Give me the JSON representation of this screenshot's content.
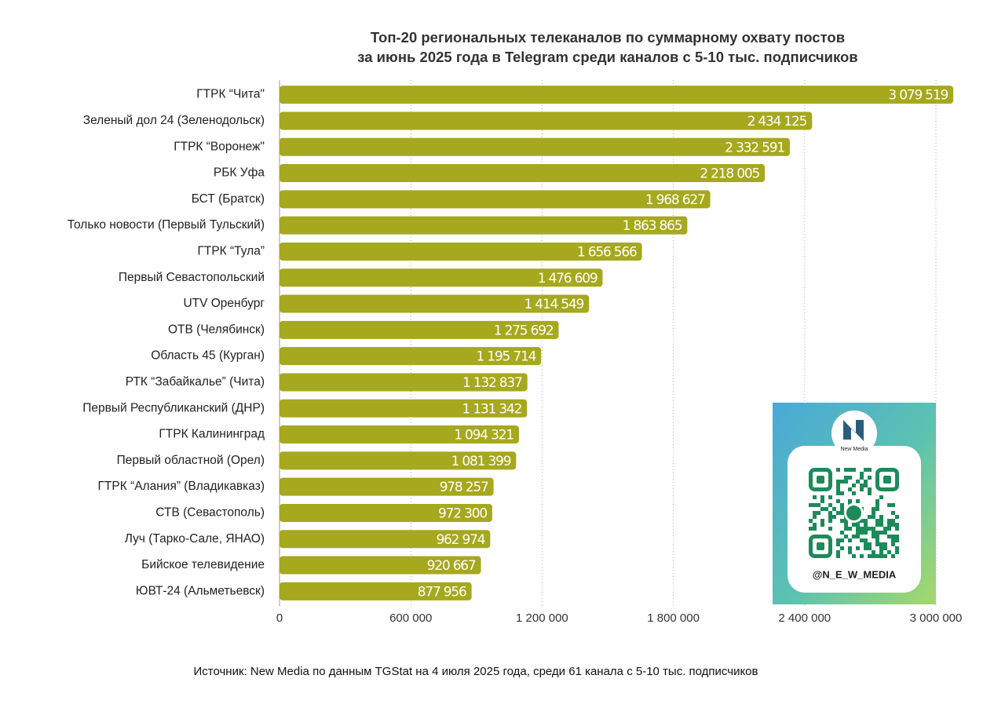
{
  "chart_data": {
    "type": "bar",
    "orientation": "horizontal",
    "title": [
      "Топ-20 региональных телеканалов по суммарному охвату постов",
      "за июнь 2025 года в Telegram среди каналов с 5-10 тыс. подписчиков"
    ],
    "categories": [
      "ГТРК “Чита\"",
      "Зеленый дол 24 (Зеленодольск)",
      "ГТРК “Воронеж\"",
      "РБК Уфа",
      "БСТ (Братск)",
      "Только новости (Первый Тульский)",
      "ГТРК “Тула”",
      "Первый Севастопольский",
      "UTV Оренбург",
      "ОТВ (Челябинск)",
      "Область 45 (Курган)",
      "РТК “Забайкалье” (Чита)",
      "Первый Республиканский (ДНР)",
      "ГТРК Калининград",
      "Первый областной (Орел)",
      "ГТРК “Алания” (Владикавказ)",
      "СТВ (Севастополь)",
      "Луч (Тарко-Сале, ЯНАО)",
      "Бийское телевидение",
      "ЮВТ-24 (Альметьевск)"
    ],
    "values": [
      3079519,
      2434125,
      2332591,
      2218005,
      1968627,
      1863865,
      1656566,
      1476609,
      1414549,
      1275692,
      1195714,
      1132837,
      1131342,
      1094321,
      1081399,
      978257,
      972300,
      962974,
      920667,
      877956
    ],
    "value_labels": [
      "3 079 519",
      "2 434 125",
      "2 332 591",
      "2 218 005",
      "1 968 627",
      "1 863 865",
      "1 656 566",
      "1 476 609",
      "1 414 549",
      "1 275 692",
      "1 195 714",
      "1 132 837",
      "1 131 342",
      "1 094 321",
      "1 081 399",
      "978 257",
      "972 300",
      "962 974",
      "920 667",
      "877 956"
    ],
    "color": "#a6a81e",
    "xlim": [
      0,
      3000000
    ],
    "xticks": [
      0,
      {
        "value": 600000,
        "label": "600 000"
      },
      {
        "value": 1200000,
        "label": "1 200 000"
      },
      {
        "value": 1800000,
        "label": "1 800 000"
      },
      {
        "value": 2400000,
        "label": "2 400 000"
      },
      {
        "value": 3000000,
        "label": "3 000 000"
      }
    ],
    "grid": true,
    "source": "Источник: New Media по данным TGStat на 4 июля 2025 года, среди 61 канала с 5-10 тыс. подписчиков"
  },
  "badge": {
    "logo_text": "New Media",
    "handle": "@N_E_W_MEDIA"
  }
}
